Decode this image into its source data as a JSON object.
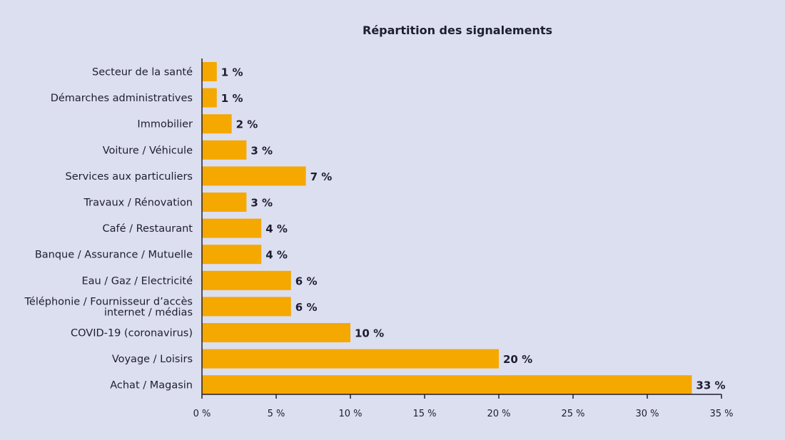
{
  "chart_data": {
    "type": "bar",
    "orientation": "horizontal",
    "title": "Répartition des signalements",
    "xlabel": "",
    "ylabel": "",
    "xlim": [
      0,
      35
    ],
    "x_ticks": [
      0,
      5,
      10,
      15,
      20,
      25,
      30,
      35
    ],
    "x_tick_labels": [
      "0 %",
      "5 %",
      "10 %",
      "15 %",
      "20 %",
      "25 %",
      "30 %",
      "35 %"
    ],
    "grid": false,
    "bar_color": "#f5a800",
    "categories": [
      {
        "label": [
          "Secteur de la santé"
        ],
        "value": 1,
        "value_label": "1 %"
      },
      {
        "label": [
          "Démarches administratives"
        ],
        "value": 1,
        "value_label": "1 %"
      },
      {
        "label": [
          "Immobilier"
        ],
        "value": 2,
        "value_label": "2 %"
      },
      {
        "label": [
          "Voiture / Véhicule"
        ],
        "value": 3,
        "value_label": "3 %"
      },
      {
        "label": [
          "Services aux particuliers"
        ],
        "value": 7,
        "value_label": "7 %"
      },
      {
        "label": [
          "Travaux / Rénovation"
        ],
        "value": 3,
        "value_label": "3 %"
      },
      {
        "label": [
          "Café / Restaurant"
        ],
        "value": 4,
        "value_label": "4 %"
      },
      {
        "label": [
          "Banque / Assurance / Mutuelle"
        ],
        "value": 4,
        "value_label": "4 %"
      },
      {
        "label": [
          "Eau / Gaz / Electricité"
        ],
        "value": 6,
        "value_label": "6 %"
      },
      {
        "label": [
          "Téléphonie / Fournisseur d’accès",
          "internet / médias"
        ],
        "value": 6,
        "value_label": "6 %"
      },
      {
        "label": [
          "COVID-19 (coronavirus)"
        ],
        "value": 10,
        "value_label": "10 %"
      },
      {
        "label": [
          "Voyage / Loisirs"
        ],
        "value": 20,
        "value_label": "20 %"
      },
      {
        "label": [
          "Achat / Magasin"
        ],
        "value": 33,
        "value_label": "33 %"
      }
    ]
  }
}
